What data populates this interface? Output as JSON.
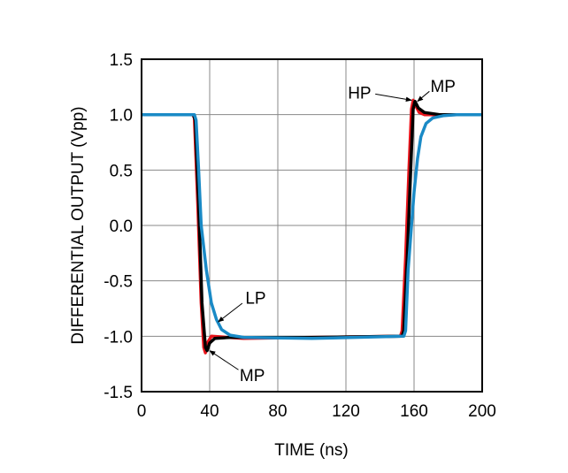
{
  "chart_data": {
    "type": "line",
    "xlabel": "TIME (ns)",
    "ylabel": "DIFFERENTIAL OUTPUT (Vpp)",
    "xlim": [
      0,
      200
    ],
    "ylim": [
      -1.5,
      1.5
    ],
    "xticks": [
      "0",
      "40",
      "80",
      "120",
      "160",
      "200"
    ],
    "yticks": [
      "1.5",
      "1.0",
      "0.5",
      "0.0",
      "-0.5",
      "-1.0",
      "-1.5"
    ],
    "grid": true,
    "series": [
      {
        "name": "HP",
        "color": "#e8141b",
        "points": [
          [
            0,
            1.0
          ],
          [
            30,
            1.0
          ],
          [
            31,
            0.97
          ],
          [
            33,
            0.2
          ],
          [
            35,
            -0.7
          ],
          [
            36.5,
            -1.1
          ],
          [
            37.5,
            -1.15
          ],
          [
            39,
            -1.05
          ],
          [
            41,
            -1.0
          ],
          [
            60,
            -1.02
          ],
          [
            100,
            -1.01
          ],
          [
            152,
            -1.0
          ],
          [
            153,
            -0.95
          ],
          [
            155,
            -0.3
          ],
          [
            157,
            0.5
          ],
          [
            158.5,
            1.05
          ],
          [
            159.5,
            1.13
          ],
          [
            161,
            1.08
          ],
          [
            163,
            1.02
          ],
          [
            166,
            1.0
          ],
          [
            200,
            1.0
          ]
        ]
      },
      {
        "name": "MP",
        "color": "#000000",
        "points": [
          [
            0,
            1.0
          ],
          [
            30.5,
            1.0
          ],
          [
            31.5,
            0.95
          ],
          [
            33.5,
            0.2
          ],
          [
            35.5,
            -0.7
          ],
          [
            37.5,
            -1.1
          ],
          [
            38.5,
            -1.13
          ],
          [
            40,
            -1.06
          ],
          [
            43,
            -1.02
          ],
          [
            52,
            -1.01
          ],
          [
            100,
            -1.01
          ],
          [
            153,
            -1.0
          ],
          [
            154,
            -0.95
          ],
          [
            156,
            -0.3
          ],
          [
            158,
            0.5
          ],
          [
            159.5,
            1.05
          ],
          [
            160.5,
            1.12
          ],
          [
            162.5,
            1.06
          ],
          [
            166,
            1.02
          ],
          [
            175,
            1.0
          ],
          [
            200,
            1.0
          ]
        ]
      },
      {
        "name": "LP",
        "color": "#1a8ac6",
        "points": [
          [
            0,
            1.0
          ],
          [
            31,
            1.0
          ],
          [
            32,
            0.95
          ],
          [
            33.5,
            0.5
          ],
          [
            35,
            0.0
          ],
          [
            38,
            -0.4
          ],
          [
            41,
            -0.7
          ],
          [
            44,
            -0.85
          ],
          [
            47,
            -0.94
          ],
          [
            52,
            -0.99
          ],
          [
            60,
            -1.01
          ],
          [
            100,
            -1.02
          ],
          [
            154,
            -1.0
          ],
          [
            155,
            -0.95
          ],
          [
            156.5,
            -0.4
          ],
          [
            158.5,
            0.0
          ],
          [
            160,
            0.3
          ],
          [
            162,
            0.6
          ],
          [
            164,
            0.8
          ],
          [
            167,
            0.92
          ],
          [
            171,
            0.97
          ],
          [
            177,
            0.99
          ],
          [
            185,
            1.0
          ],
          [
            200,
            1.0
          ]
        ]
      }
    ],
    "annotations": [
      {
        "text": "HP",
        "label_at": [
          128,
          1.2
        ],
        "target": [
          158.5,
          1.13
        ]
      },
      {
        "text": "MP",
        "label_at": [
          177,
          1.26
        ],
        "target": [
          162,
          1.12
        ]
      },
      {
        "text": "LP",
        "label_at": [
          67,
          -0.65
        ],
        "target": [
          45,
          -0.87
        ]
      },
      {
        "text": "MP",
        "label_at": [
          65,
          -1.35
        ],
        "target": [
          40,
          -1.13
        ]
      }
    ]
  }
}
